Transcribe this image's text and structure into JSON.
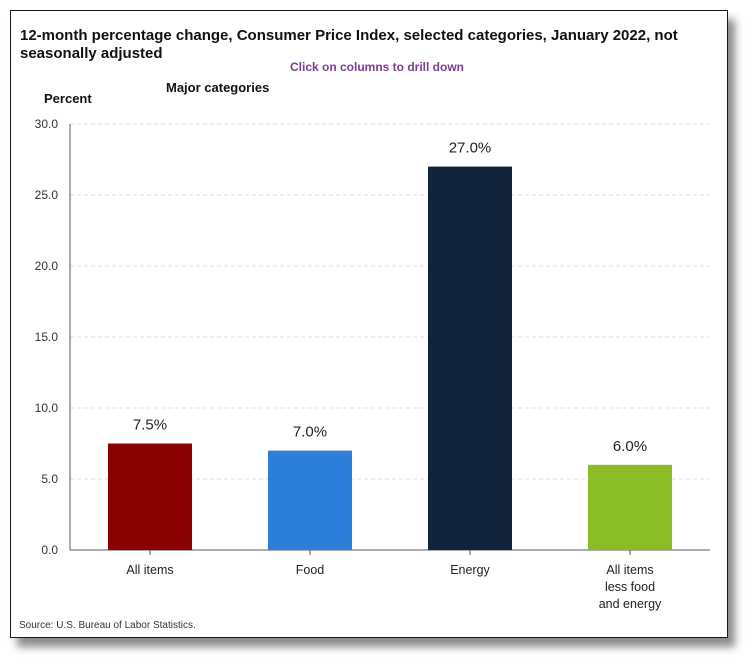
{
  "header": {
    "title": "12-month percentage change, Consumer Price Index, selected categories, January 2022, not seasonally adjusted",
    "drill_hint": "Click on columns to drill down",
    "group_label": "Major categories"
  },
  "footer": {
    "source": "Source: U.S. Bureau of Labor Statistics."
  },
  "colors": {
    "all_items": "#8b0000",
    "food": "#2e7fd9",
    "energy": "#10233a",
    "core": "#8cbd27",
    "grid": "#dcdcdc",
    "axis": "#555555"
  },
  "chart_data": {
    "type": "bar",
    "title": "12-month percentage change, Consumer Price Index, selected categories, January 2022, not seasonally adjusted",
    "ylabel": "Percent",
    "xlabel": "",
    "categories": [
      [
        "All items"
      ],
      [
        "Food"
      ],
      [
        "Energy"
      ],
      [
        "All items",
        "less food",
        "and energy"
      ]
    ],
    "values": [
      7.5,
      7.0,
      27.0,
      6.0
    ],
    "data_labels": [
      "7.5%",
      "7.0%",
      "27.0%",
      "6.0%"
    ],
    "bar_colors": [
      "#8b0000",
      "#2e7fd9",
      "#10233a",
      "#8cbd27"
    ],
    "ylim": [
      0,
      30
    ],
    "yticks": [
      "0.0",
      "5.0",
      "10.0",
      "15.0",
      "20.0",
      "25.0",
      "30.0"
    ],
    "ytick_values": [
      0,
      5,
      10,
      15,
      20,
      25,
      30
    ],
    "grid": true,
    "grid_style": "dashed",
    "legend": "none"
  }
}
